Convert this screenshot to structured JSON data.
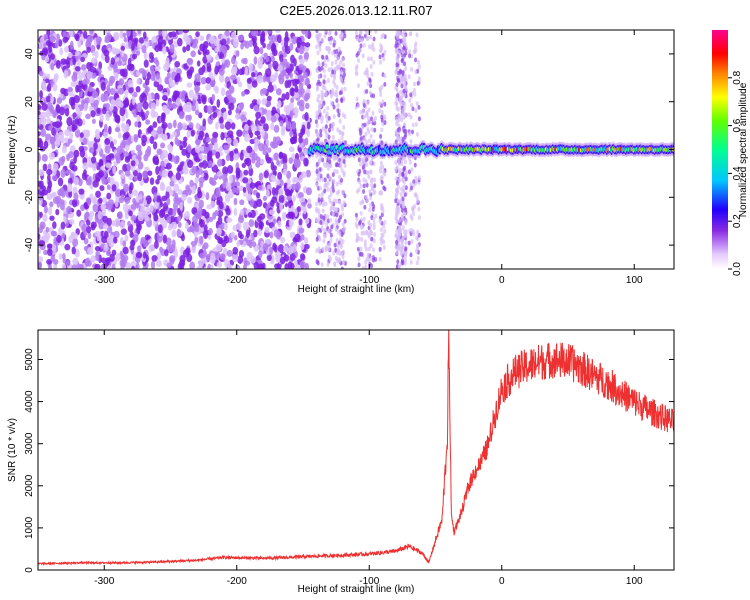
{
  "title": "C2E5.2026.013.12.11.R07",
  "colors": {
    "snr_line": "#ee3030",
    "spectrum_bg": "#ffffff"
  },
  "chart_data": [
    {
      "type": "heatmap",
      "name": "spectrogram",
      "xlabel": "Height of straight line (km)",
      "ylabel": "Frequency (Hz)",
      "xlim": [
        -350,
        130
      ],
      "ylim": [
        -50,
        50
      ],
      "xticks": [
        -300,
        -200,
        -100,
        0,
        100
      ],
      "xtick_labels": [
        "-300",
        "-200",
        "-100",
        "0",
        "100"
      ],
      "yticks": [
        -40,
        -20,
        0,
        20,
        40
      ],
      "ytick_labels": [
        "-40",
        "-20",
        "0",
        "20",
        "40"
      ],
      "colorbar": {
        "label": "Normalized spectral amplitude",
        "range": [
          0,
          1
        ],
        "ticks": [
          0.0,
          0.2,
          0.4,
          0.6,
          0.8
        ],
        "tick_labels": [
          "0.0",
          "0.2",
          "0.4",
          "0.6",
          "0.8"
        ],
        "colormap": "rainbow (white-violet-blue-cyan-green-yellow-red-magenta)"
      },
      "features": {
        "noise_region_km": [
          -350,
          -145
        ],
        "signal_trace": {
          "frequency_hz": 0,
          "start_km": -145,
          "end_km": 130,
          "peak_amplitude_from_km": -45
        }
      }
    },
    {
      "type": "line",
      "name": "snr",
      "xlabel": "Height of straight line (km)",
      "ylabel": "SNR (10 * v/v)",
      "xlim": [
        -350,
        130
      ],
      "ylim": [
        0,
        5700
      ],
      "xticks": [
        -300,
        -200,
        -100,
        0,
        100
      ],
      "xtick_labels": [
        "-300",
        "-200",
        "-100",
        "0",
        "100"
      ],
      "yticks": [
        0,
        1000,
        2000,
        3000,
        4000,
        5000
      ],
      "ytick_labels": [
        "0",
        "1000",
        "2000",
        "3000",
        "4000",
        "5000"
      ],
      "series": [
        {
          "name": "SNR",
          "x": [
            -350,
            -320,
            -290,
            -260,
            -230,
            -210,
            -200,
            -180,
            -160,
            -140,
            -120,
            -100,
            -80,
            -70,
            -60,
            -55,
            -50,
            -45,
            -41,
            -40,
            -38,
            -36,
            -30,
            -25,
            -20,
            -15,
            -10,
            -5,
            0,
            10,
            20,
            30,
            40,
            50,
            60,
            70,
            80,
            90,
            100,
            110,
            120,
            130
          ],
          "values": [
            150,
            170,
            170,
            190,
            230,
            300,
            290,
            280,
            300,
            330,
            350,
            380,
            450,
            560,
            400,
            180,
            700,
            1200,
            3200,
            5600,
            1300,
            900,
            1400,
            2000,
            2350,
            2600,
            3000,
            3700,
            4300,
            4700,
            4850,
            4950,
            5000,
            4950,
            4800,
            4600,
            4450,
            4200,
            4000,
            3800,
            3650,
            3500
          ]
        }
      ]
    }
  ]
}
